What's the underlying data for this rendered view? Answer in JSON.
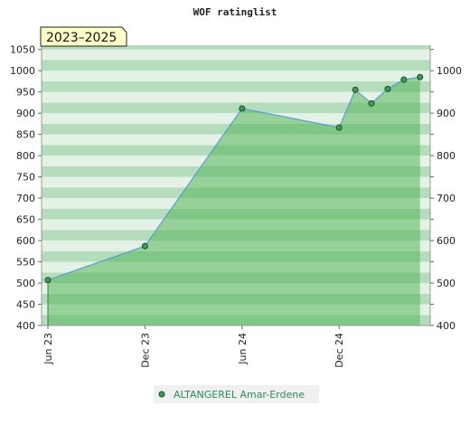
{
  "chart_data": {
    "type": "area",
    "title": "WOF ratinglist",
    "badge": "2023–2025",
    "x_ticks": [
      "Jun 23",
      "Dec 23",
      "Jun 24",
      "Dec 24"
    ],
    "y_ticks_left": [
      "400",
      "450",
      "500",
      "550",
      "600",
      "650",
      "700",
      "750",
      "800",
      "850",
      "900",
      "950",
      "1000",
      "1050"
    ],
    "y_ticks_right": [
      "400",
      "500",
      "600",
      "700",
      "800",
      "900",
      "1000"
    ],
    "ylim": [
      400,
      1060
    ],
    "series": [
      {
        "name": "ALTANGEREL Amar-Erdene",
        "x": [
          "2023-06",
          "2023-12",
          "2024-06",
          "2024-12",
          "2025-01",
          "2025-02",
          "2025-03",
          "2025-04",
          "2025-05"
        ],
        "values": [
          507,
          587,
          911,
          866,
          955,
          923,
          957,
          979,
          985
        ]
      }
    ],
    "legend_position": "bottom-center",
    "colors": {
      "line": "#5b9bd5",
      "fill": "#4caf50",
      "marker": "#3f9a55",
      "band_dark": "#b5dcbd",
      "band_light": "#e3f2e5",
      "badge_bg": "#ffffc8",
      "legend_text": "#2e8b57"
    }
  }
}
